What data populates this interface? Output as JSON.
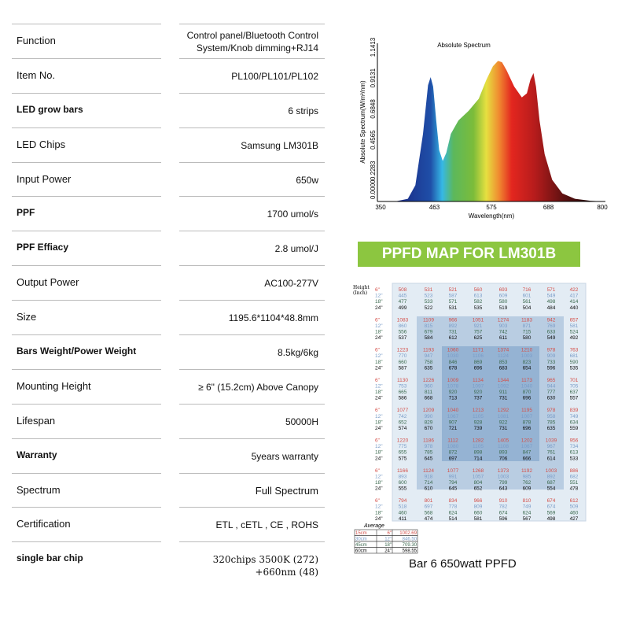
{
  "specs": [
    {
      "label": "Function",
      "value": "Control panel/Bluetooth Control System/Knob dimming+RJ14",
      "bold": false
    },
    {
      "label": "Item No.",
      "value": "PL100/PL101/PL102",
      "bold": false
    },
    {
      "label": "LED grow bars",
      "value": "6 strips",
      "bold": true
    },
    {
      "label": "LED Chips",
      "value": "Samsung LM301B",
      "bold": false
    },
    {
      "label": "Input Power",
      "value": "650w",
      "bold": false
    },
    {
      "label": "PPF",
      "value": "1700 umol/s",
      "bold": true
    },
    {
      "label": "PPF Effiacy",
      "value": "2.8 umol/J",
      "bold": true
    },
    {
      "label": "Output Power",
      "value": "AC100-277V",
      "bold": false
    },
    {
      "label": "Size",
      "value": "1195.6*1104*48.8mm",
      "bold": false
    },
    {
      "label": "Bars Weight/Power Weight",
      "value": "8.5kg/6kg",
      "bold": true
    },
    {
      "label": "Mounting Height",
      "value": "≥ 6\" (15.2cm) Above Canopy",
      "bold": false
    },
    {
      "label": "Lifespan",
      "value": "50000H",
      "bold": false
    },
    {
      "label": "Warranty",
      "value": "5years warranty",
      "bold": true
    },
    {
      "label": "Spectrum",
      "value": "Full Spectrum",
      "bold": false
    },
    {
      "label": "Certification",
      "value": "ETL , cETL , CE , ROHS",
      "bold": false
    },
    {
      "label": "single bar chip",
      "value": "320chips 3500K (272) +660nm (48)",
      "bold": true
    }
  ],
  "banner": "PPFD MAP FOR LM301B",
  "caption": "Bar 6 650watt  PPFD",
  "chart_data": {
    "type": "area",
    "title": "Absolute Spectrum",
    "xlabel": "Wavelength(nm)",
    "ylabel": "Absolute Spectrum(W/m²/nm)",
    "xlim": [
      350,
      800
    ],
    "ylim": [
      0,
      1.1413
    ],
    "xticks": [
      "350",
      "463",
      "575",
      "688",
      "800"
    ],
    "yticks": [
      "0.0000",
      "0.2283",
      "0.4565",
      "0.6848",
      "0.9131",
      "1.1413"
    ],
    "x": [
      385,
      410,
      425,
      440,
      450,
      455,
      460,
      466,
      472,
      479,
      486,
      495,
      510,
      530,
      550,
      565,
      578,
      588,
      596,
      605,
      620,
      635,
      645,
      652,
      658,
      663,
      670,
      680,
      695,
      715,
      740,
      770,
      795
    ],
    "y": [
      0,
      0.02,
      0.12,
      0.5,
      0.86,
      0.92,
      0.85,
      0.6,
      0.38,
      0.3,
      0.36,
      0.5,
      0.6,
      0.67,
      0.76,
      0.9,
      1.0,
      1.04,
      1.03,
      0.97,
      0.85,
      0.77,
      0.8,
      0.9,
      0.95,
      0.85,
      0.6,
      0.35,
      0.16,
      0.06,
      0.02,
      0.005,
      0
    ]
  },
  "ppfd": {
    "height_label": "Height\n(Inch)",
    "heights": [
      "6\"",
      "12\"",
      "18\"",
      "24\""
    ],
    "colors": [
      "#d4504a",
      "#7a9cc8",
      "#3d6b50",
      "#111111"
    ],
    "blocks": [
      [
        [
          508,
          531,
          521,
          560,
          693,
          716,
          571,
          422
        ],
        [
          445,
          523,
          587,
          613,
          609,
          601,
          549,
          417
        ],
        [
          477,
          533,
          571,
          582,
          580,
          561,
          498,
          414
        ],
        [
          499,
          522,
          531,
          535,
          519,
          504,
          484,
          440
        ]
      ],
      [
        [
          1083,
          1109,
          966,
          1051,
          1274,
          1183,
          942,
          657
        ],
        [
          860,
          815,
          892,
          921,
          903,
          871,
          769,
          581
        ],
        [
          556,
          679,
          731,
          757,
          742,
          715,
          633,
          524
        ],
        [
          537,
          584,
          612,
          625,
          611,
          580,
          549,
          492
        ]
      ],
      [
        [
          1223,
          1193,
          1060,
          1171,
          1374,
          1210,
          978,
          763
        ],
        [
          770,
          947,
          1030,
          1106,
          1124,
          1003,
          909,
          681
        ],
        [
          660,
          758,
          846,
          869,
          853,
          823,
          733,
          590
        ],
        [
          587,
          635,
          678,
          696,
          683,
          654,
          596,
          535
        ]
      ],
      [
        [
          1130,
          1226,
          1009,
          1134,
          1344,
          1173,
          965,
          701
        ],
        [
          753,
          960,
          1078,
          1097,
          1092,
          1040,
          944,
          705
        ],
        [
          665,
          811,
          920,
          920,
          911,
          870,
          777,
          637
        ],
        [
          586,
          668,
          713,
          737,
          731,
          696,
          630,
          557
        ]
      ],
      [
        [
          1077,
          1209,
          1040,
          1213,
          1292,
          1195,
          978,
          839
        ],
        [
          742,
          990,
          1067,
          1105,
          1081,
          1007,
          958,
          749
        ],
        [
          652,
          829,
          907,
          928,
          922,
          878,
          785,
          634
        ],
        [
          574,
          670,
          721,
          739,
          731,
          696,
          635,
          559
        ]
      ],
      [
        [
          1220,
          1186,
          1112,
          1282,
          1405,
          1202,
          1039,
          956
        ],
        [
          775,
          978,
          1080,
          1105,
          1108,
          1067,
          967,
          734
        ],
        [
          655,
          785,
          872,
          898,
          893,
          847,
          761,
          613
        ],
        [
          575,
          645,
          697,
          714,
          706,
          666,
          614,
          533
        ]
      ],
      [
        [
          1166,
          1124,
          1077,
          1268,
          1373,
          1192,
          1003,
          886
        ],
        [
          893,
          918,
          991,
          1057,
          1003,
          985,
          892,
          682
        ],
        [
          600,
          714,
          794,
          804,
          799,
          762,
          687,
          551
        ],
        [
          555,
          610,
          645,
          652,
          643,
          609,
          554,
          478
        ]
      ],
      [
        [
          794,
          801,
          834,
          966,
          910,
          810,
          674,
          612
        ],
        [
          518,
          697,
          778,
          809,
          782,
          749,
          674,
          509
        ],
        [
          460,
          568,
          624,
          660,
          674,
          624,
          569,
          460
        ],
        [
          411,
          474,
          514,
          581,
          596,
          567,
          498,
          427
        ]
      ]
    ],
    "average_title": "Average",
    "average": [
      [
        "15cm",
        "6\"",
        "1002.69"
      ],
      [
        "30cm",
        "12\"",
        "846.50"
      ],
      [
        "45cm",
        "18\"",
        "709.30"
      ],
      [
        "60cm",
        "24\"",
        "598.55"
      ]
    ]
  }
}
